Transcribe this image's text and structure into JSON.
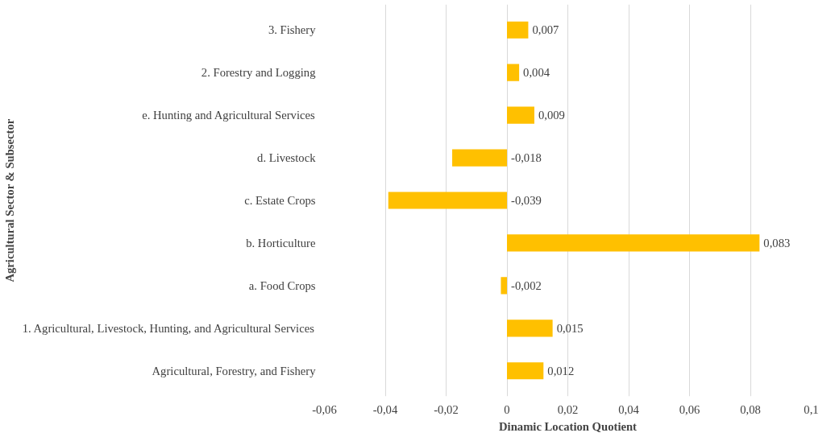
{
  "chart_data": {
    "type": "bar",
    "orientation": "horizontal",
    "categories": [
      "3. Fishery",
      "2. Forestry and Logging",
      "e. Hunting and Agricultural Services",
      "d. Livestock",
      "c. Estate Crops",
      "b. Horticulture",
      "a. Food Crops",
      "1. Agricultural, Livestock, Hunting, and Agricultural Services",
      "Agricultural, Forestry, and Fishery"
    ],
    "values": [
      0.007,
      0.004,
      0.009,
      -0.018,
      -0.039,
      0.083,
      -0.002,
      0.015,
      0.012
    ],
    "value_labels": [
      "0,007",
      "0,004",
      "0,009",
      "-0,018",
      "-0,039",
      "0,083",
      "-0,002",
      "0,015",
      "0,012"
    ],
    "color": "#ffc000",
    "xlabel": "Dinamic Location Quotient",
    "ylabel": "Agricultural Sector & Subsector",
    "xlim": [
      -0.06,
      0.1
    ],
    "xticks": [
      {
        "value": -0.06,
        "label": "-0,06"
      },
      {
        "value": -0.04,
        "label": "-0,04"
      },
      {
        "value": -0.02,
        "label": "-0,02"
      },
      0,
      {
        "value": 0.02,
        "label": "0,02"
      },
      {
        "value": 0.04,
        "label": "0,04"
      },
      {
        "value": 0.06,
        "label": "0,06"
      },
      {
        "value": 0.08,
        "label": "0,08"
      },
      {
        "value": 0.1,
        "label": "0,1"
      }
    ],
    "grid": "x"
  }
}
